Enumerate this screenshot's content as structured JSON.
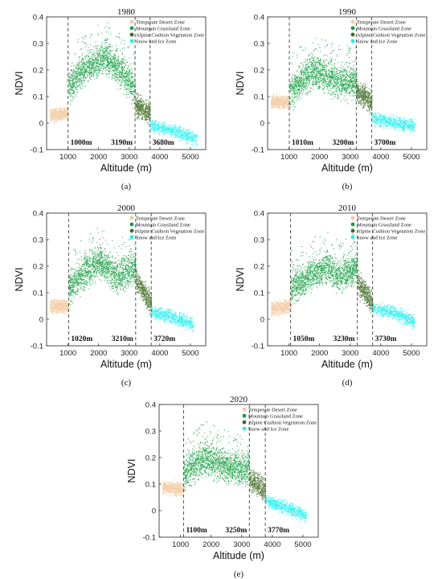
{
  "figure": {
    "legend": [
      "Temperate Desert Zone",
      "Mountain Grassland Zone",
      "Alpine Cushion Vegetation Zone",
      "Snow and Ice Zone"
    ],
    "colors": {
      "desert": "#f1c99d",
      "grassland": "#12a040",
      "alpine": "#3d6b21",
      "snow": "#19f2f2",
      "boundary": "#555555"
    },
    "xlabel": "Altitude (m)",
    "ylabel": "NDVI",
    "xticks": [
      "1000",
      "2000",
      "3000",
      "4000",
      "5000"
    ],
    "yticks": [
      "-0.1",
      "0",
      "0.1",
      "0.2",
      "0.3",
      "0.4"
    ]
  },
  "chart_data": [
    {
      "type": "scatter",
      "title": "1980",
      "caption": "(a)",
      "xlabel": "Altitude (m)",
      "ylabel": "NDVI",
      "xlim": [
        300,
        5500
      ],
      "ylim": [
        -0.1,
        0.4
      ],
      "series": [
        {
          "name": "Temperate Desert Zone"
        },
        {
          "name": "Mountain Grassland Zone"
        },
        {
          "name": "Alpine Cushion Vegetation Zone"
        },
        {
          "name": "Snow and Ice Zone"
        }
      ],
      "boundaries": [
        1000,
        3190,
        3680
      ],
      "boundary_labels": [
        "1000m",
        "3190m",
        "3680m"
      ],
      "profile": {
        "desert": [
          [
            400,
            0.03
          ],
          [
            1000,
            0.04
          ]
        ],
        "grassland": [
          [
            1000,
            0.14
          ],
          [
            1500,
            0.2
          ],
          [
            2200,
            0.25
          ],
          [
            2800,
            0.19
          ],
          [
            3190,
            0.12
          ]
        ],
        "alpine": [
          [
            3190,
            0.07
          ],
          [
            3680,
            0.04
          ]
        ],
        "snow": [
          [
            3680,
            -0.01
          ],
          [
            4500,
            -0.03
          ],
          [
            5200,
            -0.06
          ]
        ]
      }
    },
    {
      "type": "scatter",
      "title": "1990",
      "caption": "(b)",
      "xlabel": "Altitude (m)",
      "ylabel": "NDVI",
      "xlim": [
        300,
        5500
      ],
      "ylim": [
        -0.1,
        0.4
      ],
      "series": [
        {
          "name": "Temperate Desert Zone"
        },
        {
          "name": "Mountain Grassland Zone"
        },
        {
          "name": "Alpine Cushion Vegetation Zone"
        },
        {
          "name": "Snow and Ice Zone"
        }
      ],
      "boundaries": [
        1010,
        3200,
        3700
      ],
      "boundary_labels": [
        "1010m",
        "3200m",
        "3700m"
      ],
      "profile": {
        "desert": [
          [
            400,
            0.08
          ],
          [
            1010,
            0.08
          ]
        ],
        "grassland": [
          [
            1010,
            0.12
          ],
          [
            1800,
            0.2
          ],
          [
            2500,
            0.16
          ],
          [
            3200,
            0.15
          ]
        ],
        "alpine": [
          [
            3200,
            0.12
          ],
          [
            3700,
            0.08
          ]
        ],
        "snow": [
          [
            3700,
            0.02
          ],
          [
            4500,
            0.0
          ],
          [
            5100,
            -0.01
          ]
        ]
      }
    },
    {
      "type": "scatter",
      "title": "2000",
      "caption": "(c)",
      "xlabel": "Altitude (m)",
      "ylabel": "NDVI",
      "xlim": [
        300,
        5500
      ],
      "ylim": [
        -0.1,
        0.4
      ],
      "series": [
        {
          "name": "Temperate Desert Zone"
        },
        {
          "name": "Mountain Grassland Zone"
        },
        {
          "name": "Alpine Cushion Vegetation Zone"
        },
        {
          "name": "Snow and Ice Zone"
        }
      ],
      "boundaries": [
        1020,
        3210,
        3720
      ],
      "boundary_labels": [
        "1020m",
        "3210m",
        "3720m"
      ],
      "profile": {
        "desert": [
          [
            400,
            0.05
          ],
          [
            1020,
            0.05
          ]
        ],
        "grassland": [
          [
            1020,
            0.12
          ],
          [
            2000,
            0.22
          ],
          [
            2600,
            0.16
          ],
          [
            3210,
            0.2
          ]
        ],
        "alpine": [
          [
            3210,
            0.15
          ],
          [
            3720,
            0.06
          ]
        ],
        "snow": [
          [
            3720,
            0.03
          ],
          [
            4400,
            0.01
          ],
          [
            5100,
            -0.02
          ]
        ]
      }
    },
    {
      "type": "scatter",
      "title": "2010",
      "caption": "(d)",
      "xlabel": "Altitude (m)",
      "ylabel": "NDVI",
      "xlim": [
        300,
        5500
      ],
      "ylim": [
        -0.1,
        0.4
      ],
      "series": [
        {
          "name": "Temperate Desert Zone"
        },
        {
          "name": "Mountain Grassland Zone"
        },
        {
          "name": "Alpine Cushion Vegetation Zone"
        },
        {
          "name": "Snow and Ice Zone"
        }
      ],
      "boundaries": [
        1050,
        3230,
        3730
      ],
      "boundary_labels": [
        "1050m",
        "3230m",
        "3730m"
      ],
      "profile": {
        "desert": [
          [
            400,
            0.04
          ],
          [
            1050,
            0.05
          ]
        ],
        "grassland": [
          [
            1050,
            0.12
          ],
          [
            2200,
            0.2
          ],
          [
            2600,
            0.16
          ],
          [
            3230,
            0.2
          ]
        ],
        "alpine": [
          [
            3230,
            0.14
          ],
          [
            3730,
            0.06
          ]
        ],
        "snow": [
          [
            3730,
            0.04
          ],
          [
            4400,
            0.03
          ],
          [
            5100,
            -0.01
          ]
        ]
      }
    },
    {
      "type": "scatter",
      "title": "2020",
      "caption": "(e)",
      "xlabel": "Altitude (m)",
      "ylabel": "NDVI",
      "xlim": [
        300,
        5500
      ],
      "ylim": [
        -0.1,
        0.4
      ],
      "series": [
        {
          "name": "Temperate Desert Zone"
        },
        {
          "name": "Mountain Grassland Zone"
        },
        {
          "name": "Alpine Cushion Vegetation Zone"
        },
        {
          "name": "Snow and Ice Zone"
        }
      ],
      "boundaries": [
        1100,
        3250,
        3770
      ],
      "boundary_labels": [
        "1100m",
        "3250m",
        "3770m"
      ],
      "profile": {
        "desert": [
          [
            400,
            0.09
          ],
          [
            1100,
            0.08
          ]
        ],
        "grassland": [
          [
            1100,
            0.14
          ],
          [
            1800,
            0.2
          ],
          [
            2600,
            0.16
          ],
          [
            3250,
            0.16
          ]
        ],
        "alpine": [
          [
            3250,
            0.12
          ],
          [
            3770,
            0.08
          ]
        ],
        "snow": [
          [
            3770,
            0.04
          ],
          [
            4500,
            0.01
          ],
          [
            5100,
            -0.02
          ]
        ]
      }
    }
  ]
}
